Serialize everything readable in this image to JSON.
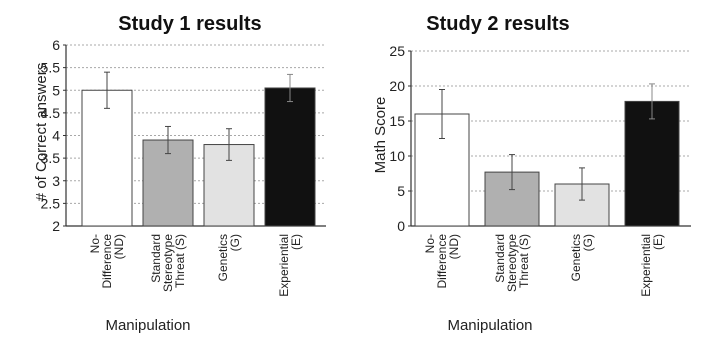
{
  "chart_data": [
    {
      "type": "bar",
      "title": "Study 1 results",
      "xlabel": "Manipulation",
      "ylabel": "# of Correct answers",
      "categories": [
        "No-Difference (ND)",
        "Standard Stereotype Threat (S)",
        "Genetics (G)",
        "Experiential (E)"
      ],
      "category_lines": [
        [
          "No-",
          "Difference",
          "(ND)"
        ],
        [
          "Standard",
          "Stereotype",
          "Threat (S)"
        ],
        [
          "Genetics",
          "(G)"
        ],
        [
          "Experiential",
          "(E)"
        ]
      ],
      "values": [
        5.0,
        3.9,
        3.8,
        5.05
      ],
      "error": [
        0.4,
        0.3,
        0.35,
        0.3
      ],
      "ylim": [
        2,
        6
      ],
      "yticks": [
        "2",
        "2.5",
        "3",
        "3.5",
        "4",
        "4.5",
        "5",
        "5.5",
        "6"
      ],
      "bar_colors": [
        "#ffffff",
        "#b0b0b0",
        "#e2e2e2",
        "#111111"
      ],
      "grid": true
    },
    {
      "type": "bar",
      "title": "Study 2 results",
      "xlabel": "Manipulation",
      "ylabel": "Math Score",
      "categories": [
        "No-Difference (ND)",
        "Standard Stereotype Threat (S)",
        "Genetics (G)",
        "Experiential (E)"
      ],
      "category_lines": [
        [
          "No-",
          "Difference",
          "(ND)"
        ],
        [
          "Standard",
          "Stereotype",
          "Threat (S)"
        ],
        [
          "Genetics",
          "(G)"
        ],
        [
          "Experiential",
          "(E)"
        ]
      ],
      "values": [
        16.0,
        7.7,
        6.0,
        17.8
      ],
      "error": [
        3.5,
        2.5,
        2.3,
        2.5
      ],
      "ylim": [
        0,
        25
      ],
      "yticks": [
        "0",
        "5",
        "10",
        "15",
        "20",
        "25"
      ],
      "bar_colors": [
        "#ffffff",
        "#b0b0b0",
        "#e2e2e2",
        "#111111"
      ],
      "grid": true
    }
  ]
}
